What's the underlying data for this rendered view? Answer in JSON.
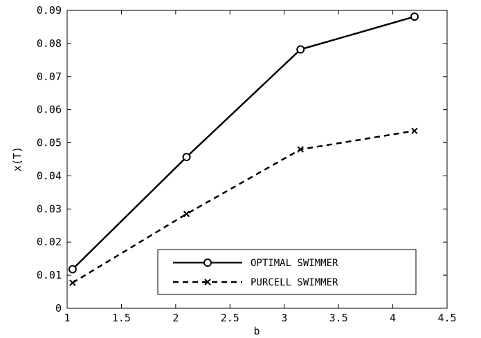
{
  "chart_data": {
    "type": "line",
    "title": "",
    "xlabel": "b",
    "ylabel": "x(T)",
    "xlim": [
      1,
      4.5
    ],
    "ylim": [
      0,
      0.09
    ],
    "xticks": [
      1,
      1.5,
      2,
      2.5,
      3,
      3.5,
      4,
      4.5
    ],
    "xtick_labels": [
      "1",
      "1.5",
      "2",
      "2.5",
      "3",
      "3.5",
      "4",
      "4.5"
    ],
    "yticks": [
      0,
      0.01,
      0.02,
      0.03,
      0.04,
      0.05,
      0.06,
      0.07,
      0.08,
      0.09
    ],
    "ytick_labels": [
      "0",
      "0.01",
      "0.02",
      "0.03",
      "0.04",
      "0.05",
      "0.06",
      "0.07",
      "0.08",
      "0.09"
    ],
    "grid": false,
    "legend_position": "bottom-right",
    "series": [
      {
        "name": "OPTIMAL SWIMMER",
        "x": [
          1.05,
          2.1,
          3.15,
          4.2
        ],
        "y": [
          0.0118,
          0.0457,
          0.0782,
          0.0881
        ],
        "line_style": "solid",
        "marker": "circle",
        "color": "#000000"
      },
      {
        "name": "PURCELL SWIMMER",
        "x": [
          1.05,
          2.1,
          3.15,
          4.2
        ],
        "y": [
          0.0077,
          0.0285,
          0.048,
          0.0536
        ],
        "line_style": "dashed",
        "marker": "x",
        "color": "#000000"
      }
    ]
  }
}
